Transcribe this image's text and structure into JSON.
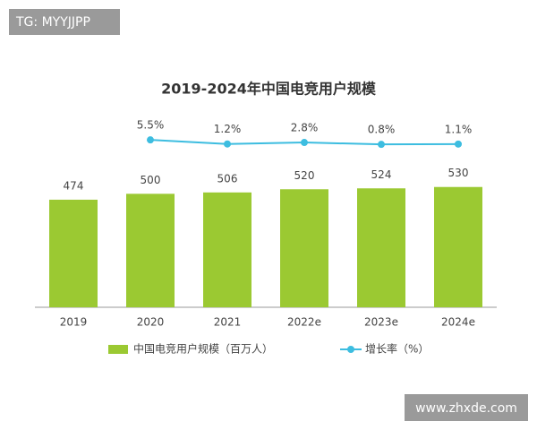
{
  "watermarks": [
    "TG: MYYJJPP",
    "www.zhxde.com"
  ],
  "chart_data": {
    "type": "bar",
    "title": "2019-2024年中国电竞用户规模",
    "categories": [
      "2019",
      "2020",
      "2021",
      "2022e",
      "2023e",
      "2024e"
    ],
    "series": [
      {
        "name": "中国电竞用户规模（百万人）",
        "color": "#9bc932",
        "values": [
          474,
          500,
          506,
          520,
          524,
          530
        ]
      },
      {
        "name": "增长率（%）",
        "type": "line",
        "axis": "y2",
        "color": "#3dbde0",
        "values": [
          null,
          5.5,
          1.2,
          2.8,
          0.8,
          1.1
        ],
        "value_labels": [
          null,
          "5.5%",
          "1.2%",
          "2.8%",
          "0.8%",
          "1.1%"
        ]
      }
    ],
    "ylim": [
      0,
      600
    ],
    "y2lim": [
      0,
      100
    ],
    "legend": "bottom"
  }
}
